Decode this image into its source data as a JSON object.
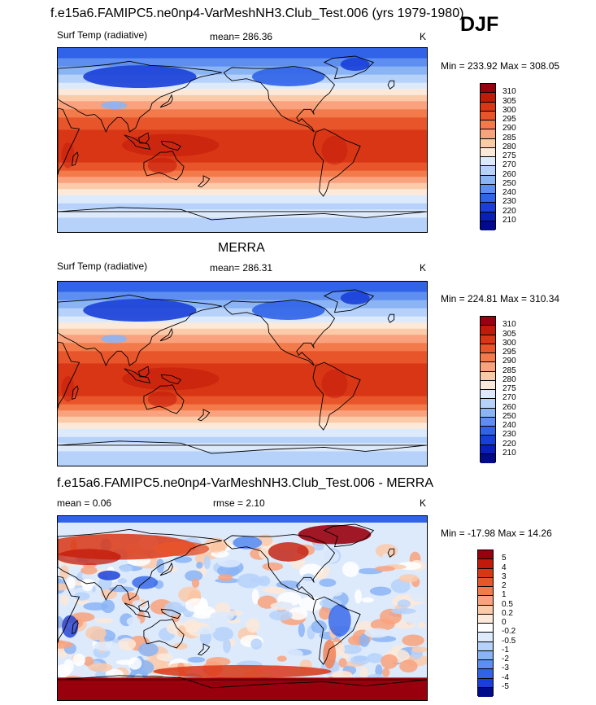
{
  "header": {
    "title": "f.e15a6.FAMIPC5.ne0np4-VarMeshNH3.Club_Test.006 (yrs 1979-1980)",
    "season": "DJF"
  },
  "chart_data": [
    {
      "type": "heatmap",
      "title": "",
      "variable": "Surf Temp (radiative)",
      "mean_label": "mean= 286.36",
      "units": "K",
      "minmax": "Min = 233.92 Max = 308.05",
      "levels": [
        "310",
        "305",
        "300",
        "295",
        "290",
        "285",
        "280",
        "275",
        "270",
        "260",
        "250",
        "240",
        "230",
        "220",
        "210"
      ],
      "colors": [
        "#99000d",
        "#c21a0a",
        "#d93615",
        "#e8552a",
        "#f37a4b",
        "#f9a27d",
        "#fbcaa9",
        "#fde9d9",
        "#ddeafc",
        "#b6d2fa",
        "#8bb4f4",
        "#5d8ef0",
        "#3063e8",
        "#1a3fd8",
        "#0a1fb8",
        "#000a8a"
      ],
      "min": 233.92,
      "max": 308.05,
      "mean": 286.36
    },
    {
      "type": "heatmap",
      "title": "MERRA",
      "variable": "Surf Temp (radiative)",
      "mean_label": "mean= 286.31",
      "units": "K",
      "minmax": "Min = 224.81 Max = 310.34",
      "levels": [
        "310",
        "305",
        "300",
        "295",
        "290",
        "285",
        "280",
        "275",
        "270",
        "260",
        "250",
        "240",
        "230",
        "220",
        "210"
      ],
      "colors": [
        "#99000d",
        "#c21a0a",
        "#d93615",
        "#e8552a",
        "#f37a4b",
        "#f9a27d",
        "#fbcaa9",
        "#fde9d9",
        "#ddeafc",
        "#b6d2fa",
        "#8bb4f4",
        "#5d8ef0",
        "#3063e8",
        "#1a3fd8",
        "#0a1fb8",
        "#000a8a"
      ],
      "min": 224.81,
      "max": 310.34,
      "mean": 286.31
    },
    {
      "type": "heatmap",
      "title": "f.e15a6.FAMIPC5.ne0np4-VarMeshNH3.Club_Test.006 - MERRA",
      "variable": "mean =   0.06",
      "mean_label": "rmse =   2.10",
      "units": "K",
      "minmax": "Min = -17.98 Max =  14.26",
      "levels": [
        "5",
        "4",
        "3",
        "2",
        "1",
        "0.5",
        "0.2",
        "0",
        "-0.2",
        "-0.5",
        "-1",
        "-2",
        "-3",
        "-4",
        "-5"
      ],
      "colors": [
        "#99000d",
        "#c21a0a",
        "#d93615",
        "#e8552a",
        "#f37a4b",
        "#f9a27d",
        "#fbcaa9",
        "#fde9d9",
        "#ffffff",
        "#ddeafc",
        "#b6d2fa",
        "#8bb4f4",
        "#5d8ef0",
        "#3063e8",
        "#1a3fd8",
        "#000a8a"
      ],
      "min": -17.98,
      "max": 14.26,
      "mean": 0.06,
      "rmse": 2.1
    }
  ]
}
